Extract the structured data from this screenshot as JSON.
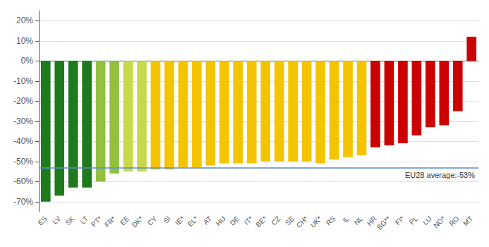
{
  "chart_data": {
    "type": "bar",
    "categories": [
      "ES",
      "LV",
      "SK",
      "LT",
      "PT*",
      "FR*",
      "EE",
      "DK*",
      "CY",
      "SI",
      "IE*",
      "EL*",
      "AT",
      "HU",
      "DE",
      "IT*",
      "BE*",
      "CZ",
      "SE",
      "CH*",
      "UK*",
      "RS",
      "IL",
      "NL",
      "HR",
      "BG**",
      "FI*",
      "PL",
      "LU",
      "NO*",
      "RO",
      "MT"
    ],
    "values": [
      -70,
      -67,
      -63,
      -63,
      -60,
      -56,
      -55,
      -55,
      -54,
      -54,
      -53,
      -53,
      -52,
      -51,
      -51,
      -51,
      -50,
      -50,
      -50,
      -50,
      -51,
      -49,
      -48,
      -47,
      -43,
      -42,
      -41,
      -37,
      -33,
      -32,
      -25,
      12
    ],
    "colors": [
      "#1d7a1d",
      "#1d7a1d",
      "#1d7a1d",
      "#1d7a1d",
      "#92c040",
      "#92c040",
      "#c8d84a",
      "#c8d84a",
      "#f5c400",
      "#f5c400",
      "#f5c400",
      "#f5c400",
      "#f5c400",
      "#f5c400",
      "#f5c400",
      "#f5c400",
      "#f5c400",
      "#f5c400",
      "#f5c400",
      "#f5c400",
      "#f5c400",
      "#f5c400",
      "#f5c400",
      "#f5c400",
      "#cc0000",
      "#cc0000",
      "#cc0000",
      "#cc0000",
      "#cc0000",
      "#cc0000",
      "#cc0000",
      "#cc0000"
    ],
    "ylim": [
      -75,
      25
    ],
    "yticks": [
      {
        "value": -70,
        "label": "-70%"
      },
      {
        "value": -60,
        "label": "-60%"
      },
      {
        "value": -50,
        "label": "-50%"
      },
      {
        "value": -40,
        "label": "-40%"
      },
      {
        "value": -30,
        "label": "-30%"
      },
      {
        "value": -20,
        "label": "-20%"
      },
      {
        "value": -10,
        "label": "-10%"
      },
      {
        "value": 0,
        "label": "0%"
      },
      {
        "value": 10,
        "label": "10%"
      },
      {
        "value": 20,
        "label": "20%"
      }
    ],
    "grid": true,
    "annotations": [
      {
        "type": "hline",
        "value": -53,
        "text": "EU28 average:-53%",
        "color": "#5b8cc8"
      }
    ]
  }
}
